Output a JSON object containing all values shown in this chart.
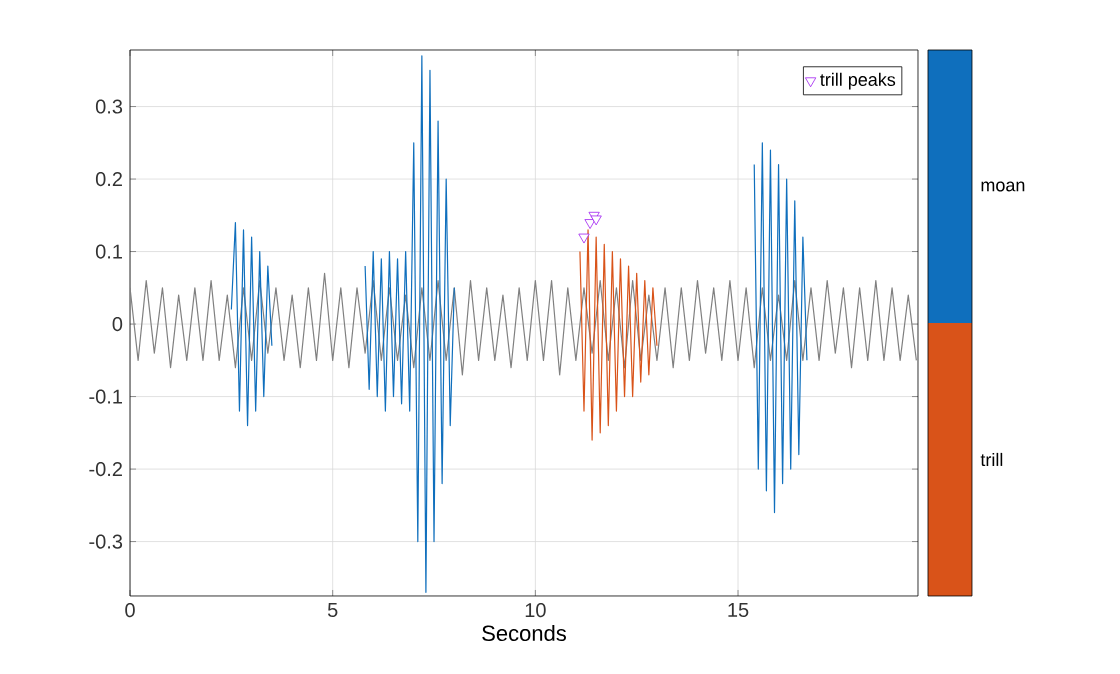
{
  "chart_data": {
    "type": "line",
    "xlabel": "Seconds",
    "xlim": [
      0,
      19.44
    ],
    "ylim": [
      -0.375,
      0.378
    ],
    "xticks": [
      0,
      5,
      10,
      15
    ],
    "yticks": [
      -0.3,
      -0.2,
      -0.1,
      0,
      0.1,
      0.2,
      0.3
    ],
    "grid": true,
    "legend": "top right",
    "series": [
      {
        "color": "#808080",
        "x": [
          0,
          0.2,
          0.4,
          0.6,
          0.8,
          1.0,
          1.2,
          1.4,
          1.6,
          1.8,
          2.0,
          2.2,
          2.4,
          2.6,
          2.8,
          3.0,
          3.2,
          3.4,
          3.6,
          3.8,
          4.0,
          4.2,
          4.4,
          4.6,
          4.8,
          5.0,
          5.2,
          5.4,
          5.6,
          5.8,
          6.0,
          6.2,
          6.4,
          6.6,
          6.8,
          7.0,
          7.2,
          7.4,
          7.6,
          7.8,
          8.0,
          8.2,
          8.4,
          8.6,
          8.8,
          9.0,
          9.2,
          9.4,
          9.6,
          9.8,
          10.0,
          10.2,
          10.4,
          10.6,
          10.8,
          11.0,
          11.2,
          11.4,
          11.6,
          11.8,
          12.0,
          12.2,
          12.4,
          12.6,
          12.8,
          13.0,
          13.2,
          13.4,
          13.6,
          13.8,
          14.0,
          14.2,
          14.4,
          14.6,
          14.8,
          15.0,
          15.2,
          15.4,
          15.6,
          15.8,
          16.0,
          16.2,
          16.4,
          16.6,
          16.8,
          17.0,
          17.2,
          17.4,
          17.6,
          17.8,
          18.0,
          18.2,
          18.4,
          18.6,
          18.8,
          19.0,
          19.2,
          19.4
        ],
        "values": [
          0.05,
          -0.05,
          0.06,
          -0.04,
          0.05,
          -0.06,
          0.04,
          -0.05,
          0.05,
          -0.05,
          0.06,
          -0.05,
          0.04,
          -0.06,
          0.05,
          -0.05,
          0.06,
          -0.04,
          0.05,
          -0.05,
          0.04,
          -0.06,
          0.05,
          -0.05,
          0.07,
          -0.05,
          0.05,
          -0.06,
          0.05,
          -0.04,
          0.06,
          -0.05,
          0.05,
          -0.05,
          0.04,
          -0.06,
          0.05,
          -0.05,
          0.06,
          -0.05,
          0.05,
          -0.07,
          0.06,
          -0.05,
          0.05,
          -0.05,
          0.04,
          -0.06,
          0.05,
          -0.05,
          0.06,
          -0.05,
          0.06,
          -0.07,
          0.05,
          -0.05,
          0.05,
          -0.04,
          0.06,
          -0.05,
          0.05,
          -0.06,
          0.06,
          -0.05,
          0.04,
          -0.05,
          0.05,
          -0.06,
          0.05,
          -0.05,
          0.06,
          -0.04,
          0.05,
          -0.05,
          0.06,
          -0.05,
          0.05,
          -0.06,
          0.05,
          -0.05,
          0.04,
          -0.05,
          0.06,
          -0.05,
          0.05,
          -0.05,
          0.06,
          -0.04,
          0.05,
          -0.06,
          0.05,
          -0.05,
          0.06,
          -0.05,
          0.05,
          -0.05,
          0.04,
          -0.05
        ]
      },
      {
        "name": "moan",
        "color": "#0f6fbd",
        "x": [
          2.5,
          2.6,
          2.7,
          2.8,
          2.9,
          3.0,
          3.1,
          3.2,
          3.3,
          3.4,
          3.5,
          4.5,
          5.8,
          5.9,
          6.0,
          6.1,
          6.2,
          6.3,
          6.4,
          6.5,
          6.6,
          6.7,
          6.8,
          6.9,
          7.0,
          7.1,
          7.2,
          7.3,
          7.4,
          7.5,
          7.6,
          7.7,
          7.8,
          7.9,
          8.0,
          12.0,
          15.4,
          15.5,
          15.6,
          15.7,
          15.8,
          15.9,
          16.0,
          16.1,
          16.2,
          16.3,
          16.4,
          16.5,
          16.6,
          16.7
        ],
        "values": [
          0.02,
          0.14,
          -0.12,
          0.13,
          -0.14,
          0.12,
          -0.12,
          0.1,
          -0.1,
          0.08,
          -0.03,
          null,
          0.08,
          -0.09,
          0.1,
          -0.1,
          0.09,
          -0.12,
          0.1,
          -0.1,
          0.09,
          -0.11,
          0.1,
          -0.12,
          0.25,
          -0.3,
          0.37,
          -0.37,
          0.35,
          -0.3,
          0.28,
          -0.22,
          0.2,
          -0.14,
          0.05,
          null,
          0.22,
          -0.2,
          0.25,
          -0.23,
          0.24,
          -0.26,
          0.22,
          -0.22,
          0.2,
          -0.2,
          0.17,
          -0.18,
          0.12,
          -0.05
        ]
      },
      {
        "name": "trill",
        "color": "#d95319",
        "x": [
          11.1,
          11.2,
          11.3,
          11.4,
          11.5,
          11.6,
          11.7,
          11.8,
          11.9,
          12.0,
          12.1,
          12.2,
          12.3,
          12.4,
          12.5,
          12.6,
          12.7,
          12.8,
          12.9,
          13.0
        ],
        "values": [
          0.1,
          -0.12,
          0.13,
          -0.16,
          0.12,
          -0.15,
          0.11,
          -0.14,
          0.1,
          -0.12,
          0.09,
          -0.1,
          0.08,
          -0.1,
          0.07,
          -0.08,
          0.06,
          -0.07,
          0.05,
          -0.03
        ]
      },
      {
        "name": "trill peaks",
        "type": "scatter",
        "marker": "triangle",
        "color": "#a020f0",
        "x": [
          11.2,
          11.35,
          11.45,
          11.5
        ],
        "values": [
          0.12,
          0.14,
          0.15,
          0.145
        ]
      }
    ]
  }
}
